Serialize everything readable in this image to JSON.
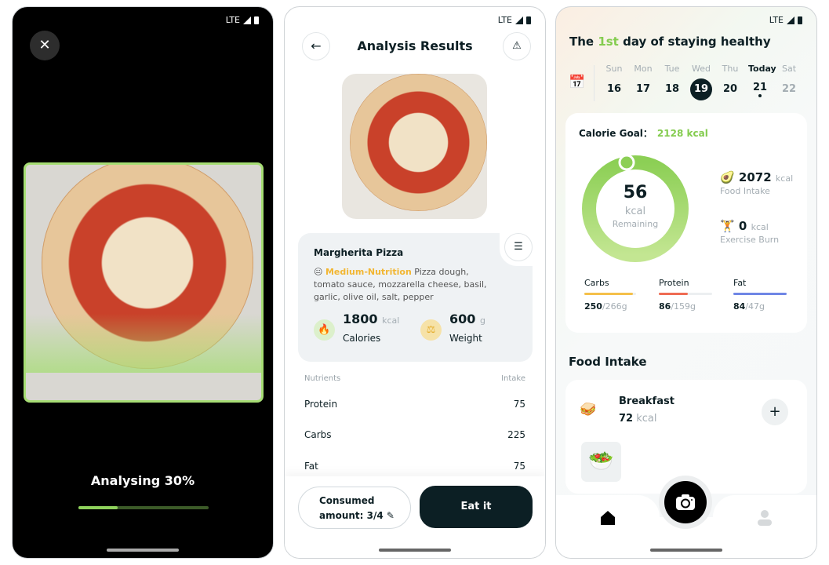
{
  "status": {
    "network": "LTE"
  },
  "analysing": {
    "label": "Analysing 30%",
    "progress": 0.3
  },
  "analysis": {
    "title": "Analysis Results",
    "food_name": "Margherita Pizza",
    "nutrition_level": "Medium-Nutrition",
    "ingredients": "Pizza dough, tomato sauce, mozzarella cheese, basil, garlic, olive oil, salt, pepper",
    "calories": {
      "value": "1800",
      "unit": "kcal",
      "label": "Calories"
    },
    "weight": {
      "value": "600",
      "unit": "g",
      "label": "Weight"
    },
    "table": {
      "headers": [
        "Nutrients",
        "Intake"
      ],
      "rows": [
        [
          "Protein",
          "75"
        ],
        [
          "Carbs",
          "225"
        ],
        [
          "Fat",
          "75"
        ]
      ]
    },
    "consumed_line1": "Consumed",
    "consumed_line2": "amount: 3/4",
    "eat_label": "Eat it"
  },
  "home": {
    "head_pre": "The ",
    "head_hl": "1st",
    "head_post": " day of staying healthy",
    "days": [
      {
        "name": "Sun",
        "date": "16"
      },
      {
        "name": "Mon",
        "date": "17"
      },
      {
        "name": "Tue",
        "date": "18"
      },
      {
        "name": "Wed",
        "date": "19"
      },
      {
        "name": "Thu",
        "date": "20"
      },
      {
        "name": "Today",
        "date": "21"
      },
      {
        "name": "Sat",
        "date": "22"
      }
    ],
    "goal_label": "Calorie Goal：",
    "goal_value": "2128 kcal",
    "remaining": {
      "value": "56",
      "unit": "kcal",
      "label": "Remaining"
    },
    "food_intake": {
      "value": "2072",
      "unit": "kcal",
      "label": "Food Intake"
    },
    "exercise": {
      "value": "0",
      "unit": "kcal",
      "label": "Exercise Burn"
    },
    "macros": [
      {
        "name": "Carbs",
        "current": "250",
        "goal": "/266g",
        "color": "#f5c04a"
      },
      {
        "name": "Protein",
        "current": "86",
        "goal": "/159g",
        "color": "#ef6c53"
      },
      {
        "name": "Fat",
        "current": "84",
        "goal": "/47g",
        "color": "#6f86e6"
      }
    ],
    "section_title": "Food Intake",
    "meal": {
      "name": "Breakfast",
      "value": "72",
      "unit": "kcal"
    }
  },
  "colors": {
    "accent": "#84cc4f",
    "dark": "#0c1f24"
  }
}
